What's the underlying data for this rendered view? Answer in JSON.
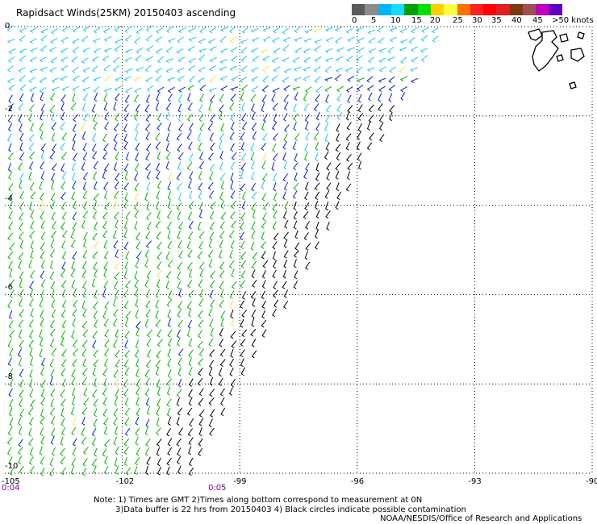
{
  "title": "Rapidsact Winds(25KM) 20150403 ascending",
  "color_scale": {
    "labels": [
      "0",
      "5",
      "10",
      "15",
      "20",
      "25",
      "30",
      "35",
      "40",
      "45",
      ">50 knots"
    ],
    "colors": [
      "#5a5a5a",
      "#8c8c8c",
      "#00b4ff",
      "#18dcff",
      "#00a000",
      "#00e000",
      "#ffd000",
      "#ffff40",
      "#ff7000",
      "#ff2020",
      "#ff0000",
      "#e02020",
      "#7a3a10",
      "#a05050",
      "#c000c0",
      "#6000c0"
    ]
  },
  "map": {
    "lon_min": -105,
    "lon_max": -90,
    "lat_min": -10,
    "lat_max": 0,
    "x_ticks": [
      "-105",
      "-102",
      "-99",
      "-96",
      "-93",
      "-90"
    ],
    "y_ticks": [
      "0",
      "-2",
      "-4",
      "-6",
      "-8",
      "-10"
    ],
    "x_tick_values": [
      -105,
      -102,
      -99,
      -96,
      -93,
      -90
    ],
    "y_tick_values": [
      0,
      -2,
      -4,
      -6,
      -8,
      -10
    ],
    "swath_east_edge": [
      [
        -93.8,
        0
      ],
      [
        -99,
        -8
      ]
    ],
    "island": "Galapagos Islands"
  },
  "times": [
    {
      "label": "0:04",
      "lon": -105
    },
    {
      "label": "0:05",
      "lon": -99.6
    }
  ],
  "notes": {
    "line1": "Note: 1) Times are GMT 2)Times along bottom correspond to measurement at 0N",
    "line2": "3)Data buffer is 22 hrs from 20150403 4) Black circles indicate possible contamination",
    "line3": "NOAA/NESDIS/Office of Research and Applications"
  },
  "wind_colors": {
    "slow": "#000000",
    "light": "#18c8f0",
    "moderate": "#0020d0",
    "fresh": "#00b400",
    "strong": "#ffe040"
  }
}
